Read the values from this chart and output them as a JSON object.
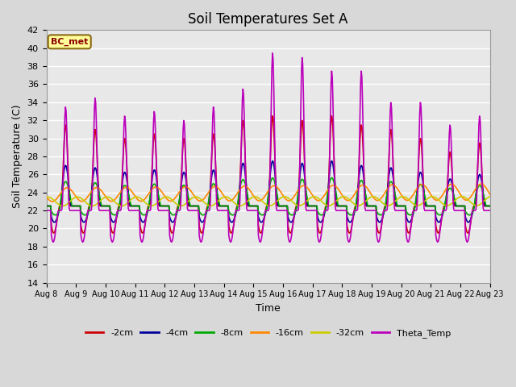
{
  "title": "Soil Temperatures Set A",
  "xlabel": "Time",
  "ylabel": "Soil Temperature (C)",
  "ylim": [
    14,
    42
  ],
  "annotation": "BC_met",
  "background_color": "#d8d8d8",
  "plot_background": "#e8e8e8",
  "grid_color": "#ffffff",
  "series": {
    "neg2cm": {
      "label": "-2cm",
      "color": "#cc0000",
      "lw": 1.2
    },
    "neg4cm": {
      "label": "-4cm",
      "color": "#000099",
      "lw": 1.2
    },
    "neg8cm": {
      "label": "-8cm",
      "color": "#00aa00",
      "lw": 1.2
    },
    "neg16cm": {
      "label": "-16cm",
      "color": "#ff8800",
      "lw": 1.2
    },
    "neg32cm": {
      "label": "-32cm",
      "color": "#cccc00",
      "lw": 1.2
    },
    "theta": {
      "label": "Theta_Temp",
      "color": "#bb00bb",
      "lw": 1.2
    }
  },
  "xtick_labels": [
    "Aug 8",
    "Aug 9",
    "Aug 10",
    "Aug 11",
    "Aug 12",
    "Aug 13",
    "Aug 14",
    "Aug 15",
    "Aug 16",
    "Aug 17",
    "Aug 18",
    "Aug 19",
    "Aug 20",
    "Aug 21",
    "Aug 22",
    "Aug 23"
  ],
  "ytick_vals": [
    14,
    16,
    18,
    20,
    22,
    24,
    26,
    28,
    30,
    32,
    34,
    36,
    38,
    40,
    42
  ]
}
